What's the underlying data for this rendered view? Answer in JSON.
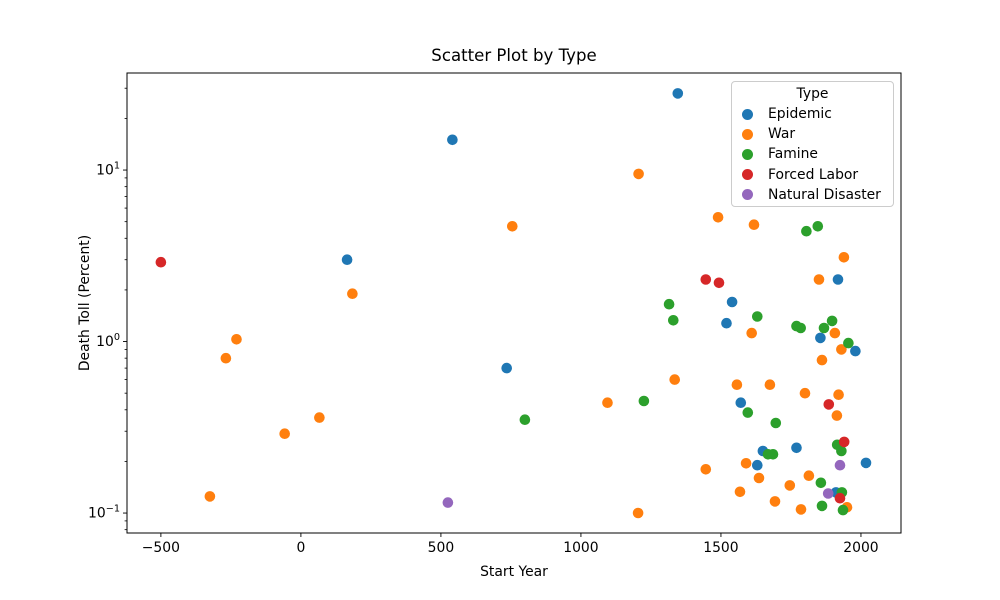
{
  "figure": {
    "background": "#ffffff"
  },
  "chart_data": {
    "type": "scatter",
    "title": "Scatter Plot by Type",
    "xlabel": "Start Year",
    "ylabel": "Death Toll (Percent)",
    "grid": false,
    "x_axis": {
      "min": -621,
      "max": 2143,
      "ticks": [
        {
          "value": -500,
          "label": "−500"
        },
        {
          "value": 0,
          "label": "0"
        },
        {
          "value": 500,
          "label": "500"
        },
        {
          "value": 1000,
          "label": "1000"
        },
        {
          "value": 1500,
          "label": "1500"
        },
        {
          "value": 2000,
          "label": "2000"
        }
      ]
    },
    "y_axis": {
      "scale": "log",
      "min": 0.0765,
      "max": 36.8,
      "ticks": [
        {
          "value": 10,
          "base": "10",
          "exp": "1"
        },
        {
          "value": 1,
          "base": "10",
          "exp": "0"
        },
        {
          "value": 0.1,
          "base": "10",
          "exp": "−1"
        }
      ]
    },
    "legend": {
      "title": "Type",
      "position": "upper right"
    },
    "series": [
      {
        "name": "Epidemic",
        "color": "#1f77b4",
        "points": [
          [
            1346,
            28
          ],
          [
            541,
            15
          ],
          [
            165,
            3.0
          ],
          [
            1918,
            2.3
          ],
          [
            1540,
            1.7
          ],
          [
            1520,
            1.28
          ],
          [
            1855,
            1.05
          ],
          [
            1980,
            0.88
          ],
          [
            735,
            0.7
          ],
          [
            1571,
            0.44
          ],
          [
            1770,
            0.24
          ],
          [
            1650,
            0.23
          ],
          [
            2018,
            0.196
          ],
          [
            1630,
            0.19
          ],
          [
            1911,
            0.132
          ]
        ]
      },
      {
        "name": "War",
        "color": "#ff7f0e",
        "points": [
          [
            -325,
            0.125
          ],
          [
            -268,
            0.8
          ],
          [
            -230,
            1.03
          ],
          [
            -58,
            0.29
          ],
          [
            66,
            0.36
          ],
          [
            184,
            1.9
          ],
          [
            755,
            4.7
          ],
          [
            1095,
            0.44
          ],
          [
            1206,
            9.5
          ],
          [
            1204,
            0.1
          ],
          [
            1335,
            0.6
          ],
          [
            1446,
            0.18
          ],
          [
            1490,
            5.3
          ],
          [
            1557,
            0.56
          ],
          [
            1568,
            0.133
          ],
          [
            1590,
            0.195
          ],
          [
            1610,
            1.12
          ],
          [
            1618,
            4.8
          ],
          [
            1636,
            0.16
          ],
          [
            1675,
            0.56
          ],
          [
            1693,
            0.117
          ],
          [
            1746,
            0.145
          ],
          [
            1786,
            0.105
          ],
          [
            1800,
            0.5
          ],
          [
            1814,
            0.165
          ],
          [
            1850,
            2.3
          ],
          [
            1861,
            0.78
          ],
          [
            1907,
            1.12
          ],
          [
            1914,
            0.37
          ],
          [
            1920,
            0.49
          ],
          [
            1930,
            0.9
          ],
          [
            1939,
            3.1
          ],
          [
            1950,
            0.108
          ]
        ]
      },
      {
        "name": "Famine",
        "color": "#2ca02c",
        "points": [
          [
            800,
            0.35
          ],
          [
            1225,
            0.45
          ],
          [
            1315,
            1.65
          ],
          [
            1330,
            1.33
          ],
          [
            1596,
            0.385
          ],
          [
            1630,
            1.4
          ],
          [
            1668,
            0.22
          ],
          [
            1686,
            0.22
          ],
          [
            1696,
            0.335
          ],
          [
            1770,
            1.23
          ],
          [
            1785,
            1.2
          ],
          [
            1805,
            4.4
          ],
          [
            1846,
            4.7
          ],
          [
            1857,
            0.15
          ],
          [
            1861,
            0.11
          ],
          [
            1868,
            1.2
          ],
          [
            1897,
            1.32
          ],
          [
            1915,
            0.25
          ],
          [
            1930,
            0.23
          ],
          [
            1932,
            0.132
          ],
          [
            1936,
            0.104
          ],
          [
            1955,
            0.98
          ]
        ]
      },
      {
        "name": "Forced Labor",
        "color": "#d62728",
        "points": [
          [
            -500,
            2.9
          ],
          [
            1446,
            2.3
          ],
          [
            1493,
            2.2
          ],
          [
            1885,
            0.43
          ],
          [
            1940,
            0.26
          ],
          [
            1925,
            0.122
          ]
        ]
      },
      {
        "name": "Natural Disaster",
        "color": "#9467bd",
        "points": [
          [
            525,
            0.115
          ],
          [
            1883,
            0.13
          ],
          [
            1925,
            0.19
          ]
        ]
      }
    ]
  }
}
